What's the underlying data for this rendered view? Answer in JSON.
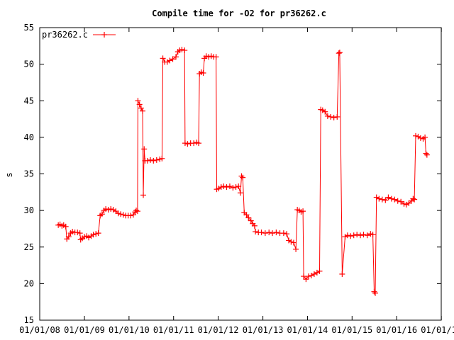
{
  "chart_data": {
    "type": "line",
    "title": "Compile time for -O2 for pr36262.c",
    "xlabel": "",
    "ylabel": "s",
    "ylim": [
      15,
      55
    ],
    "yticks": [
      15,
      20,
      25,
      30,
      35,
      40,
      45,
      50,
      55
    ],
    "xlim": [
      "2008-01-01",
      "2016-12-31"
    ],
    "xticks": [
      {
        "date": "2008-01-01",
        "label": "01/01/08"
      },
      {
        "date": "2009-01-01",
        "label": "01/01/09"
      },
      {
        "date": "2010-01-01",
        "label": "01/01/10"
      },
      {
        "date": "2011-01-01",
        "label": "01/01/11"
      },
      {
        "date": "2012-01-01",
        "label": "01/01/12"
      },
      {
        "date": "2013-01-01",
        "label": "01/01/13"
      },
      {
        "date": "2014-01-01",
        "label": "01/01/14"
      },
      {
        "date": "2015-01-01",
        "label": "01/01/15"
      },
      {
        "date": "2016-01-01",
        "label": "01/01/16"
      },
      {
        "date": "2017-01-01",
        "label": "01/01/17"
      }
    ],
    "grid": false,
    "legend": "top-left",
    "color": "#ff0000",
    "series": [
      {
        "name": "pr36262.c",
        "marker": "plus",
        "points": [
          [
            "2008-06-01",
            28.0
          ],
          [
            "2008-06-15",
            28.1
          ],
          [
            "2008-07-01",
            27.9
          ],
          [
            "2008-07-15",
            28.0
          ],
          [
            "2008-08-01",
            27.8
          ],
          [
            "2008-08-10",
            26.1
          ],
          [
            "2008-08-25",
            26.4
          ],
          [
            "2008-09-10",
            26.9
          ],
          [
            "2008-09-25",
            27.1
          ],
          [
            "2008-10-15",
            27.0
          ],
          [
            "2008-11-05",
            27.0
          ],
          [
            "2008-11-25",
            26.9
          ],
          [
            "2008-12-01",
            26.0
          ],
          [
            "2008-12-15",
            26.2
          ],
          [
            "2009-01-01",
            26.4
          ],
          [
            "2009-01-20",
            26.5
          ],
          [
            "2009-02-05",
            26.3
          ],
          [
            "2009-02-25",
            26.5
          ],
          [
            "2009-03-15",
            26.7
          ],
          [
            "2009-04-05",
            26.8
          ],
          [
            "2009-04-25",
            26.9
          ],
          [
            "2009-05-10",
            29.3
          ],
          [
            "2009-05-25",
            29.5
          ],
          [
            "2009-06-10",
            30.0
          ],
          [
            "2009-06-25",
            30.2
          ],
          [
            "2009-07-15",
            30.1
          ],
          [
            "2009-08-05",
            30.2
          ],
          [
            "2009-08-25",
            30.1
          ],
          [
            "2009-09-15",
            29.9
          ],
          [
            "2009-10-05",
            29.6
          ],
          [
            "2009-10-25",
            29.5
          ],
          [
            "2009-11-15",
            29.4
          ],
          [
            "2009-12-05",
            29.3
          ],
          [
            "2009-12-25",
            29.3
          ],
          [
            "2010-01-15",
            29.3
          ],
          [
            "2010-02-05",
            29.4
          ],
          [
            "2010-02-20",
            29.8
          ],
          [
            "2010-03-01",
            30.0
          ],
          [
            "2010-03-12",
            29.9
          ],
          [
            "2010-03-15",
            45.0
          ],
          [
            "2010-03-28",
            44.5
          ],
          [
            "2010-04-10",
            44.0
          ],
          [
            "2010-04-22",
            43.6
          ],
          [
            "2010-04-28",
            32.1
          ],
          [
            "2010-05-05",
            38.4
          ],
          [
            "2010-05-12",
            36.8
          ],
          [
            "2010-06-01",
            36.8
          ],
          [
            "2010-06-25",
            36.9
          ],
          [
            "2010-07-20",
            36.8
          ],
          [
            "2010-08-15",
            36.9
          ],
          [
            "2010-09-10",
            37.0
          ],
          [
            "2010-09-28",
            37.1
          ],
          [
            "2010-10-05",
            50.8
          ],
          [
            "2010-10-20",
            50.3
          ],
          [
            "2010-11-10",
            50.3
          ],
          [
            "2010-12-01",
            50.5
          ],
          [
            "2010-12-25",
            50.7
          ],
          [
            "2011-01-20",
            51.0
          ],
          [
            "2011-02-05",
            51.7
          ],
          [
            "2011-02-20",
            51.9
          ],
          [
            "2011-03-10",
            52.0
          ],
          [
            "2011-04-01",
            51.9
          ],
          [
            "2011-04-05",
            39.2
          ],
          [
            "2011-04-25",
            39.1
          ],
          [
            "2011-05-20",
            39.2
          ],
          [
            "2011-06-15",
            39.2
          ],
          [
            "2011-07-10",
            39.3
          ],
          [
            "2011-07-25",
            39.2
          ],
          [
            "2011-08-01",
            48.7
          ],
          [
            "2011-08-15",
            48.9
          ],
          [
            "2011-09-01",
            48.8
          ],
          [
            "2011-09-10",
            50.8
          ],
          [
            "2011-09-25",
            51.1
          ],
          [
            "2011-10-15",
            51.0
          ],
          [
            "2011-11-05",
            51.1
          ],
          [
            "2011-11-25",
            51.0
          ],
          [
            "2011-12-15",
            51.0
          ],
          [
            "2011-12-20",
            32.9
          ],
          [
            "2012-01-05",
            33.0
          ],
          [
            "2012-01-25",
            33.2
          ],
          [
            "2012-02-15",
            33.3
          ],
          [
            "2012-03-10",
            33.2
          ],
          [
            "2012-04-05",
            33.3
          ],
          [
            "2012-05-01",
            33.1
          ],
          [
            "2012-05-25",
            33.2
          ],
          [
            "2012-06-15",
            33.3
          ],
          [
            "2012-07-01",
            32.4
          ],
          [
            "2012-07-10",
            34.7
          ],
          [
            "2012-07-20",
            34.5
          ],
          [
            "2012-08-01",
            29.7
          ],
          [
            "2012-08-20",
            29.4
          ],
          [
            "2012-09-05",
            29.0
          ],
          [
            "2012-09-25",
            28.6
          ],
          [
            "2012-10-10",
            28.2
          ],
          [
            "2012-10-25",
            27.9
          ],
          [
            "2012-11-01",
            27.1
          ],
          [
            "2012-11-25",
            27.0
          ],
          [
            "2012-12-20",
            27.0
          ],
          [
            "2013-01-20",
            26.9
          ],
          [
            "2013-02-20",
            27.0
          ],
          [
            "2013-03-20",
            26.9
          ],
          [
            "2013-04-20",
            27.0
          ],
          [
            "2013-05-20",
            26.9
          ],
          [
            "2013-06-20",
            26.9
          ],
          [
            "2013-07-15",
            26.8
          ],
          [
            "2013-08-01",
            25.9
          ],
          [
            "2013-08-20",
            25.7
          ],
          [
            "2013-09-10",
            25.6
          ],
          [
            "2013-09-28",
            24.7
          ],
          [
            "2013-10-10",
            30.1
          ],
          [
            "2013-10-25",
            30.0
          ],
          [
            "2013-11-10",
            29.8
          ],
          [
            "2013-11-25",
            29.9
          ],
          [
            "2013-12-01",
            21.0
          ],
          [
            "2013-12-20",
            20.6
          ],
          [
            "2014-01-10",
            21.0
          ],
          [
            "2014-02-01",
            21.1
          ],
          [
            "2014-02-25",
            21.3
          ],
          [
            "2014-03-20",
            21.5
          ],
          [
            "2014-04-10",
            21.7
          ],
          [
            "2014-04-20",
            43.8
          ],
          [
            "2014-05-05",
            43.7
          ],
          [
            "2014-05-25",
            43.5
          ],
          [
            "2014-06-15",
            42.9
          ],
          [
            "2014-07-10",
            42.8
          ],
          [
            "2014-08-05",
            42.7
          ],
          [
            "2014-09-01",
            42.8
          ],
          [
            "2014-09-15",
            51.5
          ],
          [
            "2014-09-22",
            51.6
          ],
          [
            "2014-10-12",
            21.3
          ],
          [
            "2014-11-05",
            26.4
          ],
          [
            "2014-11-25",
            26.6
          ],
          [
            "2014-12-20",
            26.5
          ],
          [
            "2015-01-15",
            26.6
          ],
          [
            "2015-02-10",
            26.7
          ],
          [
            "2015-03-10",
            26.6
          ],
          [
            "2015-04-05",
            26.7
          ],
          [
            "2015-05-05",
            26.6
          ],
          [
            "2015-06-01",
            26.8
          ],
          [
            "2015-06-20",
            26.7
          ],
          [
            "2015-07-01",
            18.9
          ],
          [
            "2015-07-10",
            18.7
          ],
          [
            "2015-07-20",
            31.8
          ],
          [
            "2015-08-10",
            31.6
          ],
          [
            "2015-09-05",
            31.5
          ],
          [
            "2015-10-01",
            31.4
          ],
          [
            "2015-10-25",
            31.8
          ],
          [
            "2015-11-20",
            31.6
          ],
          [
            "2015-12-15",
            31.5
          ],
          [
            "2016-01-10",
            31.3
          ],
          [
            "2016-02-05",
            31.2
          ],
          [
            "2016-03-01",
            30.9
          ],
          [
            "2016-03-20",
            30.8
          ],
          [
            "2016-04-10",
            31.0
          ],
          [
            "2016-05-01",
            31.3
          ],
          [
            "2016-05-15",
            31.6
          ],
          [
            "2016-05-25",
            31.5
          ],
          [
            "2016-06-05",
            40.2
          ],
          [
            "2016-06-25",
            40.1
          ],
          [
            "2016-07-15",
            39.9
          ],
          [
            "2016-08-05",
            39.8
          ],
          [
            "2016-08-20",
            40.0
          ],
          [
            "2016-08-28",
            37.8
          ],
          [
            "2016-09-05",
            37.6
          ]
        ]
      }
    ]
  }
}
